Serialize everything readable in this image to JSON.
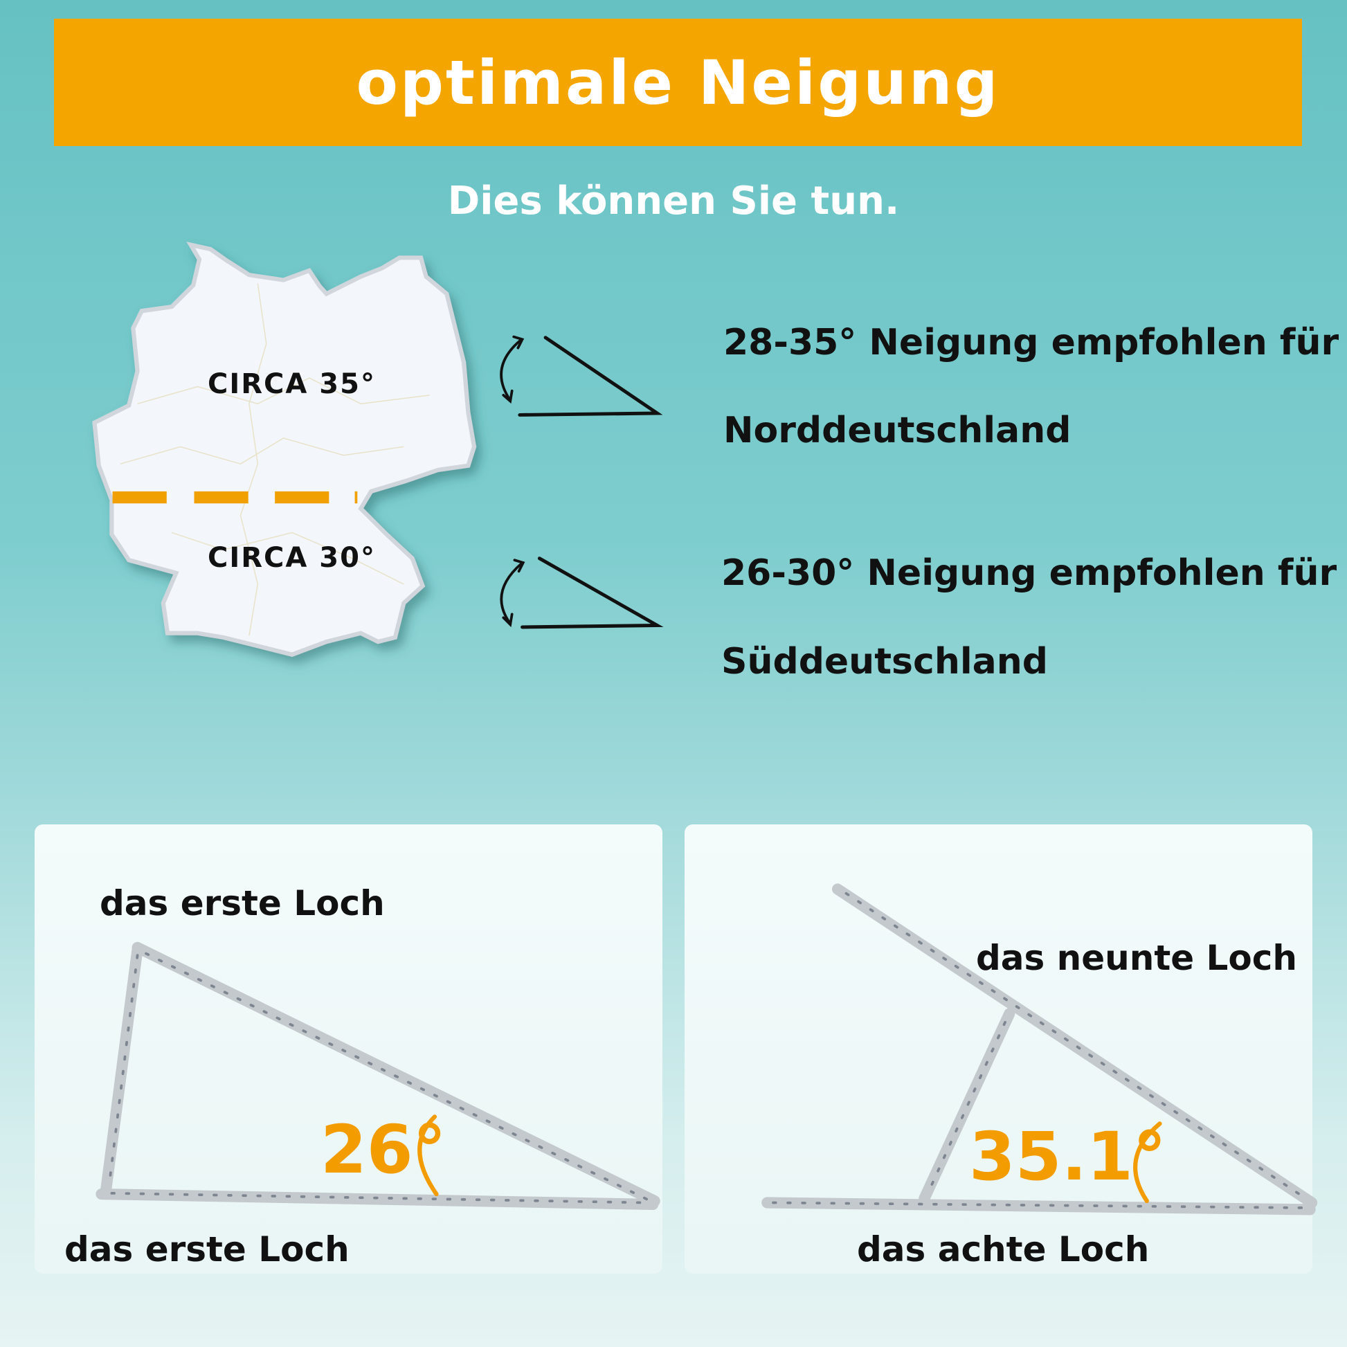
{
  "header": {
    "title": "optimale Neigung",
    "subtitle": "Dies können Sie tun."
  },
  "map": {
    "north_label": "CIRCA 35°",
    "south_label": "CIRCA 30°"
  },
  "recommendations": [
    {
      "line1": "28-35° Neigung empfohlen für",
      "line2": "Norddeutschland"
    },
    {
      "line1": "26-30° Neigung empfohlen für",
      "line2": "Süddeutschland"
    }
  ],
  "panels": [
    {
      "top_label": "das erste Loch",
      "bottom_label": "das erste Loch",
      "angle": "26°"
    },
    {
      "top_label": "das neunte Loch",
      "bottom_label": "das achte Loch",
      "angle": "35.1°"
    }
  ],
  "colors": {
    "accent": "#f5a500",
    "angle_text": "#f39c00",
    "background_top": "#66c1c3",
    "background_bottom": "#e6f4f3"
  }
}
